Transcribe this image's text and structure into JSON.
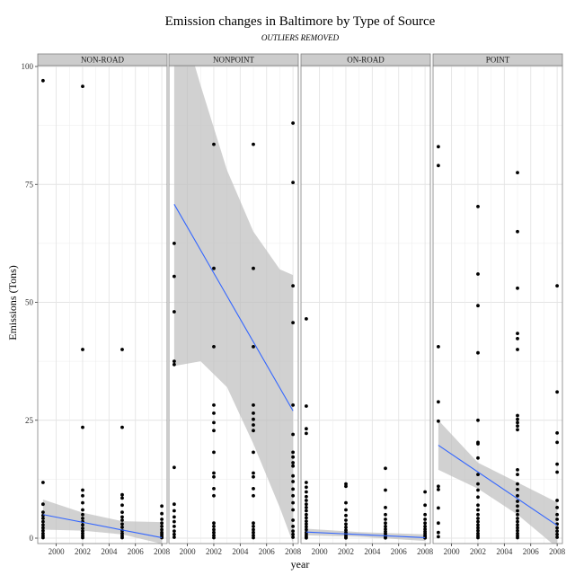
{
  "chart_data": {
    "type": "scatter",
    "title": "Emission changes in Baltimore by Type of Source",
    "subtitle": "OUTLIERS REMOVED",
    "xlabel": "year",
    "ylabel": "Emissions (Tons)",
    "xlim": [
      1998.6,
      2008.4
    ],
    "ylim": [
      -1,
      101
    ],
    "x_ticks": [
      2000,
      2002,
      2004,
      2006,
      2008
    ],
    "y_ticks": [
      0,
      25,
      50,
      75,
      100
    ],
    "grid": true,
    "colors": {
      "point": "#000000",
      "trend_line": "#3366ff",
      "ribbon": "#bdbdbd",
      "strip_fill": "#cccccc",
      "panel_border": "#7f7f7f",
      "grid": "#ebebeb"
    },
    "panels": [
      {
        "name": "NON-ROAD",
        "points": [
          [
            1999,
            97
          ],
          [
            1999,
            11.8
          ],
          [
            1999,
            7.2
          ],
          [
            1999,
            5.5
          ],
          [
            1999,
            4.8
          ],
          [
            1999,
            4.2
          ],
          [
            1999,
            3.5
          ],
          [
            1999,
            2.8
          ],
          [
            1999,
            2.2
          ],
          [
            1999,
            1.6
          ],
          [
            1999,
            1.0
          ],
          [
            1999,
            0.5
          ],
          [
            1999,
            0.1
          ],
          [
            2002,
            95.8
          ],
          [
            2002,
            40
          ],
          [
            2002,
            23.5
          ],
          [
            2002,
            10.2
          ],
          [
            2002,
            9.0
          ],
          [
            2002,
            7.5
          ],
          [
            2002,
            6.0
          ],
          [
            2002,
            5.0
          ],
          [
            2002,
            4.2
          ],
          [
            2002,
            3.5
          ],
          [
            2002,
            2.8
          ],
          [
            2002,
            2.1
          ],
          [
            2002,
            1.5
          ],
          [
            2002,
            1.0
          ],
          [
            2002,
            0.5
          ],
          [
            2002,
            0.1
          ],
          [
            2005,
            40
          ],
          [
            2005,
            23.5
          ],
          [
            2005,
            9.2
          ],
          [
            2005,
            8.5
          ],
          [
            2005,
            7.0
          ],
          [
            2005,
            5.5
          ],
          [
            2005,
            4.5
          ],
          [
            2005,
            3.8
          ],
          [
            2005,
            3.0
          ],
          [
            2005,
            2.3
          ],
          [
            2005,
            1.6
          ],
          [
            2005,
            1.0
          ],
          [
            2005,
            0.5
          ],
          [
            2005,
            0.1
          ],
          [
            2008,
            6.8
          ],
          [
            2008,
            5.2
          ],
          [
            2008,
            4.0
          ],
          [
            2008,
            3.2
          ],
          [
            2008,
            2.5
          ],
          [
            2008,
            1.8
          ],
          [
            2008,
            1.2
          ],
          [
            2008,
            0.8
          ],
          [
            2008,
            0.4
          ],
          [
            2008,
            0.1
          ]
        ],
        "trend": {
          "x": [
            1999,
            2008
          ],
          "y": [
            5.0,
            0.1
          ]
        },
        "ribbon": {
          "x": [
            1999,
            2002,
            2005,
            2008
          ],
          "lower": [
            1.8,
            1.6,
            0.8,
            -1.2
          ],
          "upper": [
            8.2,
            5.4,
            3.6,
            3.4
          ]
        }
      },
      {
        "name": "NONPOINT",
        "points": [
          [
            1999,
            62.5
          ],
          [
            1999,
            55.5
          ],
          [
            1999,
            48
          ],
          [
            1999,
            37.5
          ],
          [
            1999,
            36.8
          ],
          [
            1999,
            15
          ],
          [
            1999,
            7.2
          ],
          [
            1999,
            5.8
          ],
          [
            1999,
            4.5
          ],
          [
            1999,
            3.5
          ],
          [
            1999,
            2.5
          ],
          [
            1999,
            1.5
          ],
          [
            1999,
            0.8
          ],
          [
            1999,
            0.2
          ],
          [
            2002,
            83.5
          ],
          [
            2002,
            57.2
          ],
          [
            2002,
            40.6
          ],
          [
            2002,
            28.2
          ],
          [
            2002,
            26.5
          ],
          [
            2002,
            24.5
          ],
          [
            2002,
            22.8
          ],
          [
            2002,
            18.2
          ],
          [
            2002,
            13.8
          ],
          [
            2002,
            13.0
          ],
          [
            2002,
            10.5
          ],
          [
            2002,
            9.0
          ],
          [
            2002,
            3.2
          ],
          [
            2002,
            2.5
          ],
          [
            2002,
            1.8
          ],
          [
            2002,
            1.2
          ],
          [
            2002,
            0.6
          ],
          [
            2002,
            0.1
          ],
          [
            2005,
            83.5
          ],
          [
            2005,
            57.2
          ],
          [
            2005,
            40.6
          ],
          [
            2005,
            28.2
          ],
          [
            2005,
            26.5
          ],
          [
            2005,
            25.2
          ],
          [
            2005,
            24.0
          ],
          [
            2005,
            22.8
          ],
          [
            2005,
            18.2
          ],
          [
            2005,
            13.8
          ],
          [
            2005,
            13.0
          ],
          [
            2005,
            10.5
          ],
          [
            2005,
            9.0
          ],
          [
            2005,
            3.2
          ],
          [
            2005,
            2.5
          ],
          [
            2005,
            1.8
          ],
          [
            2005,
            1.2
          ],
          [
            2005,
            0.6
          ],
          [
            2005,
            0.1
          ],
          [
            2008,
            88
          ],
          [
            2008,
            75.4
          ],
          [
            2008,
            53.5
          ],
          [
            2008,
            45.7
          ],
          [
            2008,
            28.2
          ],
          [
            2008,
            22
          ],
          [
            2008,
            18.2
          ],
          [
            2008,
            17.2
          ],
          [
            2008,
            16.0
          ],
          [
            2008,
            15.3
          ],
          [
            2008,
            13.2
          ],
          [
            2008,
            12.0
          ],
          [
            2008,
            10.4
          ],
          [
            2008,
            9.0
          ],
          [
            2008,
            7.5
          ],
          [
            2008,
            6.0
          ],
          [
            2008,
            3.8
          ],
          [
            2008,
            2.5
          ],
          [
            2008,
            1.5
          ],
          [
            2008,
            0.8
          ],
          [
            2008,
            0.2
          ]
        ],
        "trend": {
          "x": [
            1999,
            2008
          ],
          "y": [
            70.8,
            27.0
          ]
        },
        "ribbon": {
          "x": [
            1999,
            2001,
            2003,
            2005,
            2007,
            2008
          ],
          "lower": [
            36.5,
            37.5,
            32,
            20,
            6.5,
            -1
          ],
          "upper": [
            115,
            96,
            78,
            65,
            57,
            55.8
          ]
        }
      },
      {
        "name": "ON-ROAD",
        "points": [
          [
            1999,
            46.5
          ],
          [
            1999,
            28
          ],
          [
            1999,
            23.2
          ],
          [
            1999,
            22.2
          ],
          [
            1999,
            11.8
          ],
          [
            1999,
            10.8
          ],
          [
            1999,
            9.8
          ],
          [
            1999,
            8.8
          ],
          [
            1999,
            8.0
          ],
          [
            1999,
            7.2
          ],
          [
            1999,
            6.5
          ],
          [
            1999,
            5.8
          ],
          [
            1999,
            5.0
          ],
          [
            1999,
            4.3
          ],
          [
            1999,
            3.6
          ],
          [
            1999,
            3.0
          ],
          [
            1999,
            2.4
          ],
          [
            1999,
            1.8
          ],
          [
            1999,
            1.2
          ],
          [
            1999,
            0.7
          ],
          [
            1999,
            0.3
          ],
          [
            1999,
            0.05
          ],
          [
            2002,
            11.5
          ],
          [
            2002,
            11.0
          ],
          [
            2002,
            7.5
          ],
          [
            2002,
            6.0
          ],
          [
            2002,
            4.8
          ],
          [
            2002,
            3.8
          ],
          [
            2002,
            3.0
          ],
          [
            2002,
            2.3
          ],
          [
            2002,
            1.7
          ],
          [
            2002,
            1.2
          ],
          [
            2002,
            0.7
          ],
          [
            2002,
            0.3
          ],
          [
            2002,
            0.05
          ],
          [
            2005,
            14.8
          ],
          [
            2005,
            10.2
          ],
          [
            2005,
            6.5
          ],
          [
            2005,
            5.0
          ],
          [
            2005,
            4.0
          ],
          [
            2005,
            3.2
          ],
          [
            2005,
            2.5
          ],
          [
            2005,
            1.9
          ],
          [
            2005,
            1.4
          ],
          [
            2005,
            1.0
          ],
          [
            2005,
            0.6
          ],
          [
            2005,
            0.3
          ],
          [
            2005,
            0.05
          ],
          [
            2008,
            9.8
          ],
          [
            2008,
            7.0
          ],
          [
            2008,
            5.0
          ],
          [
            2008,
            4.0
          ],
          [
            2008,
            3.2
          ],
          [
            2008,
            2.5
          ],
          [
            2008,
            1.9
          ],
          [
            2008,
            1.4
          ],
          [
            2008,
            1.0
          ],
          [
            2008,
            0.6
          ],
          [
            2008,
            0.3
          ],
          [
            2008,
            0.05
          ]
        ],
        "trend": {
          "x": [
            1999,
            2008
          ],
          "y": [
            1.3,
            0.1
          ]
        },
        "ribbon": {
          "x": [
            1999,
            2003,
            2008
          ],
          "lower": [
            0.6,
            0.3,
            -0.6
          ],
          "upper": [
            2.0,
            1.3,
            0.8
          ]
        }
      },
      {
        "name": "POINT",
        "points": [
          [
            1999,
            83
          ],
          [
            1999,
            79
          ],
          [
            1999,
            40.6
          ],
          [
            1999,
            28.9
          ],
          [
            1999,
            24.8
          ],
          [
            1999,
            11
          ],
          [
            1999,
            10.3
          ],
          [
            1999,
            6.4
          ],
          [
            1999,
            3.2
          ],
          [
            1999,
            1.2
          ],
          [
            1999,
            0.3
          ],
          [
            2002,
            70.3
          ],
          [
            2002,
            56
          ],
          [
            2002,
            49.3
          ],
          [
            2002,
            39.3
          ],
          [
            2002,
            25
          ],
          [
            2002,
            20.3
          ],
          [
            2002,
            20.0
          ],
          [
            2002,
            17.0
          ],
          [
            2002,
            13.5
          ],
          [
            2002,
            11.5
          ],
          [
            2002,
            10.2
          ],
          [
            2002,
            8.7
          ],
          [
            2002,
            7.0
          ],
          [
            2002,
            6.0
          ],
          [
            2002,
            5.0
          ],
          [
            2002,
            4.2
          ],
          [
            2002,
            3.5
          ],
          [
            2002,
            2.8
          ],
          [
            2002,
            2.2
          ],
          [
            2002,
            1.6
          ],
          [
            2002,
            1.0
          ],
          [
            2002,
            0.5
          ],
          [
            2002,
            0.1
          ],
          [
            2005,
            77.5
          ],
          [
            2005,
            65
          ],
          [
            2005,
            53
          ],
          [
            2005,
            43.4
          ],
          [
            2005,
            42.3
          ],
          [
            2005,
            40
          ],
          [
            2005,
            26
          ],
          [
            2005,
            25.2
          ],
          [
            2005,
            24.5
          ],
          [
            2005,
            23.8
          ],
          [
            2005,
            23.0
          ],
          [
            2005,
            14.5
          ],
          [
            2005,
            13.5
          ],
          [
            2005,
            11.5
          ],
          [
            2005,
            10.3
          ],
          [
            2005,
            9.0
          ],
          [
            2005,
            7.8
          ],
          [
            2005,
            6.8
          ],
          [
            2005,
            5.8
          ],
          [
            2005,
            5.0
          ],
          [
            2005,
            4.2
          ],
          [
            2005,
            3.5
          ],
          [
            2005,
            2.8
          ],
          [
            2005,
            2.2
          ],
          [
            2005,
            1.6
          ],
          [
            2005,
            1.0
          ],
          [
            2005,
            0.5
          ],
          [
            2005,
            0.1
          ],
          [
            2008,
            53.5
          ],
          [
            2008,
            31
          ],
          [
            2008,
            22.3
          ],
          [
            2008,
            20.3
          ],
          [
            2008,
            15.7
          ],
          [
            2008,
            14
          ],
          [
            2008,
            8.0
          ],
          [
            2008,
            6.5
          ],
          [
            2008,
            5.0
          ],
          [
            2008,
            4.0
          ],
          [
            2008,
            3.0
          ],
          [
            2008,
            2.2
          ],
          [
            2008,
            1.5
          ],
          [
            2008,
            0.8
          ],
          [
            2008,
            0.2
          ]
        ],
        "trend": {
          "x": [
            1999,
            2008
          ],
          "y": [
            19.7,
            2.7
          ]
        },
        "ribbon": {
          "x": [
            1999,
            2002,
            2005,
            2008
          ],
          "lower": [
            14.5,
            10.5,
            5.0,
            -2.0
          ],
          "upper": [
            25.0,
            16.0,
            11.8,
            7.6
          ]
        }
      }
    ]
  }
}
